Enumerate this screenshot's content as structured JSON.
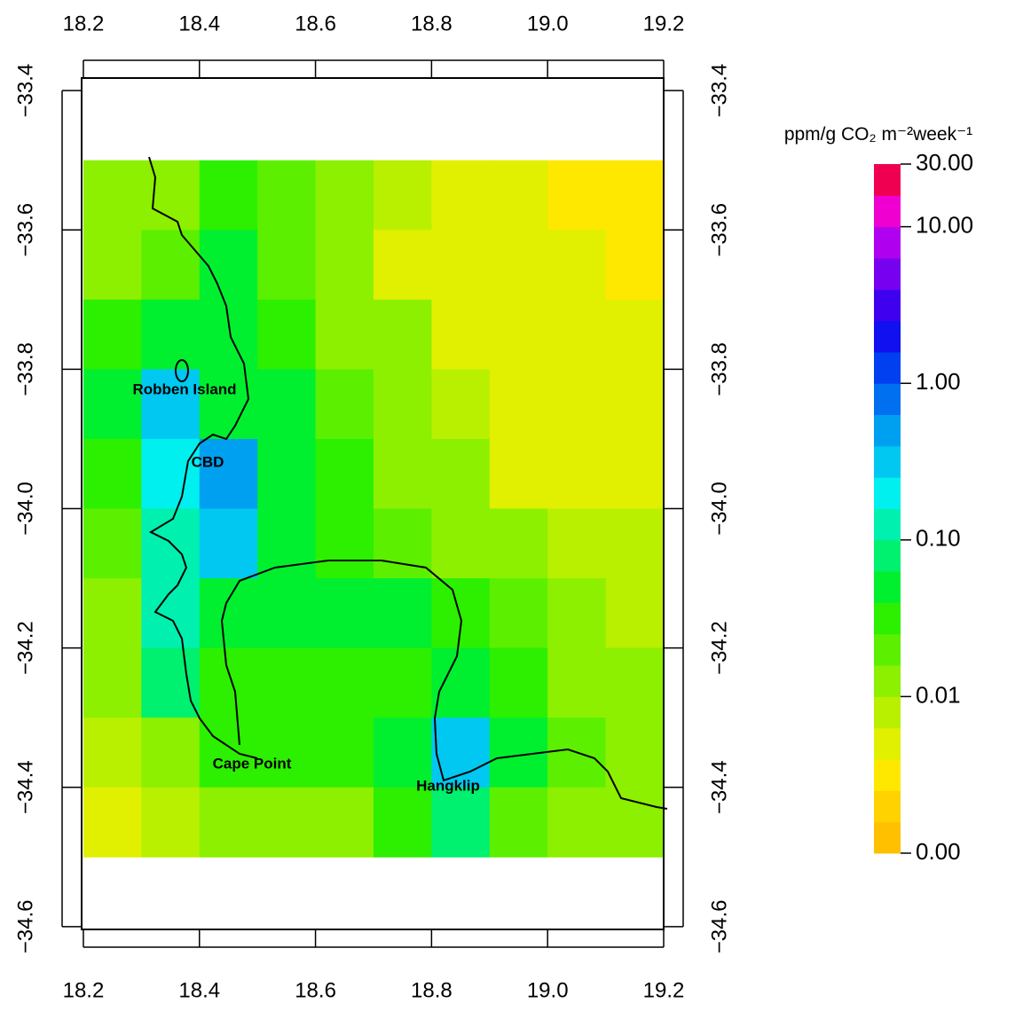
{
  "chart_data": {
    "type": "heatmap",
    "colorbar_title": "ppm/g CO₂ m⁻²week⁻¹",
    "xlim": [
      18.197,
      19.2
    ],
    "ylim": [
      -34.604,
      -33.382
    ],
    "xticks": [
      18.2,
      18.4,
      18.6,
      18.8,
      {
        "value": 19,
        "label": "19.0"
      },
      19.2
    ],
    "yticks": [
      {
        "value": -33.4,
        "label": "−33.4"
      },
      {
        "value": -33.6,
        "label": "−33.6"
      },
      {
        "value": -33.8,
        "label": "−33.8"
      },
      {
        "value": -34,
        "label": "−34.0"
      },
      {
        "value": -34.2,
        "label": "−34.2"
      },
      {
        "value": -34.4,
        "label": "−34.4"
      },
      {
        "value": -34.6,
        "label": "−34.6"
      }
    ],
    "grid": {
      "lon": [
        18.25,
        18.35,
        18.45,
        18.55,
        18.65,
        18.75,
        18.85,
        18.95,
        19.05,
        19.15
      ],
      "lat": [
        -33.55,
        -33.65,
        -33.75,
        -33.85,
        -33.95,
        -34.05,
        -34.15,
        -34.25,
        -34.35,
        -34.45
      ],
      "values": [
        [
          0.01,
          0.01,
          0.03,
          0.02,
          0.01,
          0.008,
          0.005,
          0.004,
          0.003,
          0.003
        ],
        [
          0.015,
          0.02,
          0.04,
          0.02,
          0.01,
          0.006,
          0.005,
          0.004,
          0.004,
          0.003
        ],
        [
          0.03,
          0.06,
          0.05,
          0.03,
          0.015,
          0.01,
          0.006,
          0.005,
          0.004,
          0.004
        ],
        [
          0.05,
          0.3,
          0.06,
          0.04,
          0.02,
          0.01,
          0.007,
          0.005,
          0.005,
          0.005
        ],
        [
          0.03,
          0.2,
          0.4,
          0.06,
          0.03,
          0.015,
          0.01,
          0.006,
          0.005,
          0.006
        ],
        [
          0.02,
          0.15,
          0.3,
          0.06,
          0.03,
          0.02,
          0.015,
          0.01,
          0.008,
          0.007
        ],
        [
          0.015,
          0.1,
          0.05,
          0.04,
          0.04,
          0.04,
          0.03,
          0.02,
          0.01,
          0.008
        ],
        [
          0.012,
          0.08,
          0.03,
          0.03,
          0.03,
          0.03,
          0.06,
          0.03,
          0.015,
          0.01
        ],
        [
          0.008,
          0.01,
          0.025,
          0.025,
          0.03,
          0.04,
          0.3,
          0.06,
          0.02,
          0.015
        ],
        [
          0.005,
          0.008,
          0.01,
          0.012,
          0.015,
          0.03,
          0.08,
          0.02,
          0.015,
          0.012
        ]
      ]
    },
    "colorbar": {
      "breaks": [
        0,
        0.0016,
        0.0025,
        0.004,
        0.0063,
        0.01,
        0.016,
        0.025,
        0.04,
        0.063,
        0.1,
        0.16,
        0.25,
        0.4,
        0.63,
        1,
        1.6,
        2.5,
        4,
        6.3,
        10,
        17,
        30
      ],
      "colors": [
        "#FFC000",
        "#FFD200",
        "#FFE800",
        "#E0F000",
        "#B8F000",
        "#8CF000",
        "#5CF000",
        "#2CF000",
        "#00F030",
        "#00F070",
        "#00F0B0",
        "#00F0F0",
        "#00C8F0",
        "#00A0F0",
        "#0070F0",
        "#0040F0",
        "#1010F0",
        "#4000F0",
        "#7800F0",
        "#B000F0",
        "#F000D0",
        "#F00050"
      ],
      "ticks": [
        {
          "value": 30,
          "label": "30.00"
        },
        {
          "value": 10,
          "label": "10.00"
        },
        {
          "value": 1,
          "label": "1.00"
        },
        {
          "value": 0.1,
          "label": "0.10"
        },
        {
          "value": 0.01,
          "label": "0.01"
        },
        {
          "value": 0,
          "label": "0.00"
        }
      ]
    },
    "annotations": [
      "Robben Island",
      "CBD",
      "Cape Point",
      "Hangklip"
    ]
  }
}
